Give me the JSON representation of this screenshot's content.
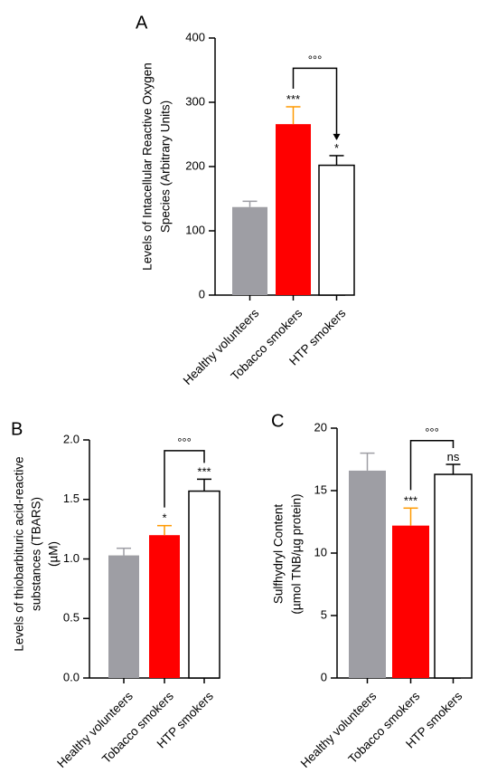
{
  "chart_data": [
    {
      "type": "bar",
      "panel": "A",
      "categories": [
        "Healthy volunteers",
        "Tobacco smokers",
        "HTP smokers"
      ],
      "values": [
        137,
        266,
        202
      ],
      "errors": [
        9,
        27,
        15
      ],
      "colors": [
        "#9e9ea4",
        "#ff0000",
        "#ffffff"
      ],
      "annotations": [
        "",
        "***",
        "*"
      ],
      "comparison": {
        "from": 1,
        "to": 2,
        "label": "°°°",
        "level": 353
      },
      "ylabel": [
        "Levels of Intacellular Reactive Oxygen",
        "Species (Arbitrary Units)"
      ],
      "ylim": [
        0,
        400
      ],
      "yticks": [
        0,
        100,
        200,
        300,
        400
      ],
      "ytick_labels": [
        "0",
        "100",
        "200",
        "300",
        "400"
      ]
    },
    {
      "type": "bar",
      "panel": "B",
      "categories": [
        "Healthy volunteers",
        "Tobacco smokers",
        "HTP smokers"
      ],
      "values": [
        1.03,
        1.2,
        1.57
      ],
      "errors": [
        0.06,
        0.08,
        0.1
      ],
      "colors": [
        "#9e9ea4",
        "#ff0000",
        "#ffffff"
      ],
      "annotations": [
        "",
        "*",
        "***"
      ],
      "comparison": {
        "from": 1,
        "to": 2,
        "label": "°°°",
        "level": 1.91
      },
      "ylabel": [
        "Levels of thiobarbituric acid-reactive",
        "substances (TBARS)",
        "(µM)"
      ],
      "ylim": [
        0,
        2.0
      ],
      "yticks": [
        0,
        0.5,
        1.0,
        1.5,
        2.0
      ],
      "ytick_labels": [
        "0.0",
        "0.5",
        "1.0",
        "1.5",
        "2.0"
      ]
    },
    {
      "type": "bar",
      "panel": "C",
      "categories": [
        "Healthy volunteers",
        "Tobacco smokers",
        "HTP smokers"
      ],
      "values": [
        16.6,
        12.2,
        16.3
      ],
      "errors": [
        1.4,
        1.4,
        0.8
      ],
      "colors": [
        "#9e9ea4",
        "#ff0000",
        "#ffffff"
      ],
      "annotations": [
        "",
        "***",
        "ns"
      ],
      "comparison": {
        "from": 1,
        "to": 2,
        "label": "°°°",
        "level": 19.0
      },
      "ylabel": [
        "Sulfhydryl Content",
        "(µmol TNB/µg protein)"
      ],
      "ylim": [
        0,
        20
      ],
      "yticks": [
        0,
        5,
        10,
        15,
        20
      ],
      "ytick_labels": [
        "0",
        "5",
        "10",
        "15",
        "20"
      ]
    }
  ]
}
